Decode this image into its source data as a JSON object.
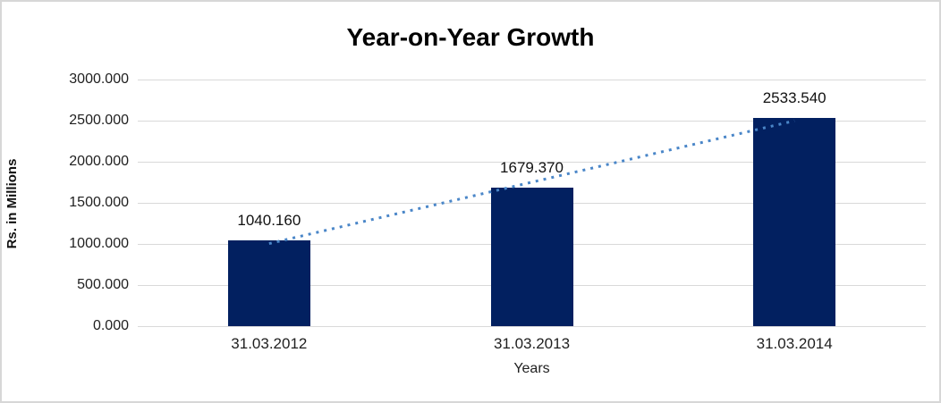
{
  "chart_data": {
    "type": "bar",
    "title": "Year-on-Year Growth",
    "xlabel": "Years",
    "ylabel": "Rs. in Millions",
    "categories": [
      "31.03.2012",
      "31.03.2013",
      "31.03.2014"
    ],
    "values": [
      1040.16,
      1679.37,
      2533.54
    ],
    "value_labels": [
      "1040.160",
      "1679.370",
      "2533.540"
    ],
    "ytick_values": [
      0,
      500,
      1000,
      1500,
      2000,
      2500,
      3000
    ],
    "ytick_labels": [
      "0.000",
      "500.000",
      "1000.000",
      "1500.000",
      "2000.000",
      "2500.000",
      "3000.000"
    ],
    "ylim": [
      0,
      3000
    ],
    "grid": true,
    "legend": "none",
    "trendline": "linear",
    "colors": {
      "bar": "#022060",
      "trendline": "#4a86c8",
      "gridline": "#d9d9d9",
      "border": "#d7d7d7",
      "text": "#1f1f1f"
    }
  }
}
